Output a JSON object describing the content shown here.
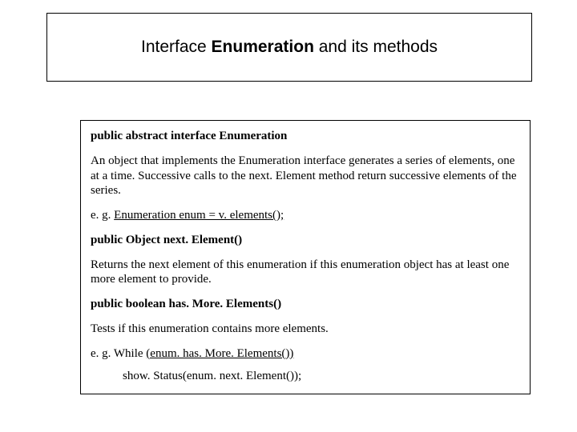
{
  "title": {
    "prefix": "Interface ",
    "bold": "Enumeration",
    "suffix": " and its methods"
  },
  "content": {
    "p1": "public abstract interface Enumeration",
    "p2": "An object that implements the Enumeration interface generates a series of elements, one at a time. Successive calls to the next. Element method return successive elements of the series.",
    "p3_prefix": "e. g. ",
    "p3_underline": "Enumeration enum = v. elements();",
    "p4": "public Object next. Element()",
    "p5": "Returns the next element of this enumeration if this enumeration object has at least one more element to provide.",
    "p6": "public boolean has. More. Elements()",
    "p7": "Tests if this enumeration contains more elements.",
    "p8_prefix": "e. g.  While ",
    "p8_underline": "(enum. has. More. Elements())",
    "p9": "show. Status(enum. next. Element());"
  }
}
